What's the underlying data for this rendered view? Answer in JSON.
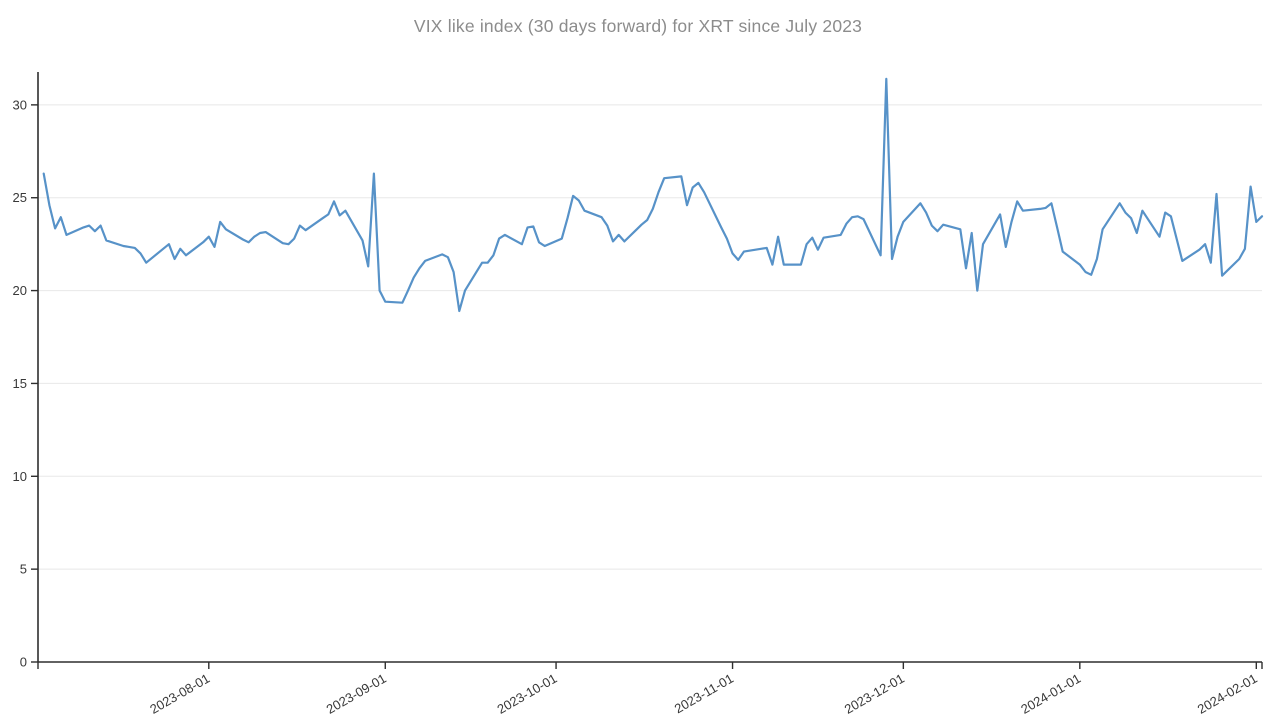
{
  "chart_data": {
    "type": "line",
    "title": "VIX like index (30 days forward) for XRT since July 2023",
    "xlabel": "",
    "ylabel": "",
    "grid": true,
    "legend": false,
    "x_range": [
      "2023-07-02",
      "2024-02-02"
    ],
    "ylim": [
      0,
      31.77
    ],
    "y_ticks": [
      0,
      5,
      10,
      15,
      20,
      25,
      30
    ],
    "x_ticks": [
      "2023-08-01",
      "2023-09-01",
      "2023-10-01",
      "2023-11-01",
      "2023-12-01",
      "2024-01-01",
      "2024-02-01"
    ],
    "colors": {
      "line": "#5792c8",
      "grid": "#e8e8e8",
      "axis": "#2e2e2e",
      "tick_label": "#383838",
      "title": "#8c8c8c"
    },
    "points": [
      [
        "2023-07-03",
        26.3
      ],
      [
        "2023-07-04",
        24.6
      ],
      [
        "2023-07-05",
        23.35
      ],
      [
        "2023-07-06",
        23.95
      ],
      [
        "2023-07-07",
        23.0
      ],
      [
        "2023-07-10",
        23.4
      ],
      [
        "2023-07-11",
        23.5
      ],
      [
        "2023-07-12",
        23.2
      ],
      [
        "2023-07-13",
        23.5
      ],
      [
        "2023-07-14",
        22.7
      ],
      [
        "2023-07-17",
        22.4
      ],
      [
        "2023-07-18",
        22.35
      ],
      [
        "2023-07-19",
        22.3
      ],
      [
        "2023-07-20",
        22.0
      ],
      [
        "2023-07-21",
        21.5
      ],
      [
        "2023-07-24",
        22.25
      ],
      [
        "2023-07-25",
        22.5
      ],
      [
        "2023-07-26",
        21.7
      ],
      [
        "2023-07-27",
        22.25
      ],
      [
        "2023-07-28",
        21.9
      ],
      [
        "2023-07-31",
        22.6
      ],
      [
        "2023-08-01",
        22.9
      ],
      [
        "2023-08-02",
        22.35
      ],
      [
        "2023-08-03",
        23.7
      ],
      [
        "2023-08-04",
        23.3
      ],
      [
        "2023-08-07",
        22.75
      ],
      [
        "2023-08-08",
        22.6
      ],
      [
        "2023-08-09",
        22.9
      ],
      [
        "2023-08-10",
        23.1
      ],
      [
        "2023-08-11",
        23.15
      ],
      [
        "2023-08-14",
        22.55
      ],
      [
        "2023-08-15",
        22.5
      ],
      [
        "2023-08-16",
        22.8
      ],
      [
        "2023-08-17",
        23.5
      ],
      [
        "2023-08-18",
        23.25
      ],
      [
        "2023-08-21",
        23.9
      ],
      [
        "2023-08-22",
        24.1
      ],
      [
        "2023-08-23",
        24.8
      ],
      [
        "2023-08-24",
        24.05
      ],
      [
        "2023-08-25",
        24.3
      ],
      [
        "2023-08-28",
        22.7
      ],
      [
        "2023-08-29",
        21.3
      ],
      [
        "2023-08-30",
        26.3
      ],
      [
        "2023-08-31",
        20.0
      ],
      [
        "2023-09-01",
        19.4
      ],
      [
        "2023-09-04",
        19.35
      ],
      [
        "2023-09-05",
        20.0
      ],
      [
        "2023-09-06",
        20.7
      ],
      [
        "2023-09-07",
        21.2
      ],
      [
        "2023-09-08",
        21.6
      ],
      [
        "2023-09-11",
        21.95
      ],
      [
        "2023-09-12",
        21.8
      ],
      [
        "2023-09-13",
        21.0
      ],
      [
        "2023-09-14",
        18.9
      ],
      [
        "2023-09-15",
        20.0
      ],
      [
        "2023-09-18",
        21.5
      ],
      [
        "2023-09-19",
        21.5
      ],
      [
        "2023-09-20",
        21.9
      ],
      [
        "2023-09-21",
        22.8
      ],
      [
        "2023-09-22",
        23.0
      ],
      [
        "2023-09-25",
        22.5
      ],
      [
        "2023-09-26",
        23.4
      ],
      [
        "2023-09-27",
        23.45
      ],
      [
        "2023-09-28",
        22.6
      ],
      [
        "2023-09-29",
        22.4
      ],
      [
        "2023-10-02",
        22.8
      ],
      [
        "2023-10-03",
        23.9
      ],
      [
        "2023-10-04",
        25.1
      ],
      [
        "2023-10-05",
        24.85
      ],
      [
        "2023-10-06",
        24.3
      ],
      [
        "2023-10-09",
        23.95
      ],
      [
        "2023-10-10",
        23.5
      ],
      [
        "2023-10-11",
        22.65
      ],
      [
        "2023-10-12",
        23.0
      ],
      [
        "2023-10-13",
        22.65
      ],
      [
        "2023-10-16",
        23.55
      ],
      [
        "2023-10-17",
        23.8
      ],
      [
        "2023-10-18",
        24.4
      ],
      [
        "2023-10-19",
        25.3
      ],
      [
        "2023-10-20",
        26.05
      ],
      [
        "2023-10-23",
        26.15
      ],
      [
        "2023-10-24",
        24.6
      ],
      [
        "2023-10-25",
        25.55
      ],
      [
        "2023-10-26",
        25.8
      ],
      [
        "2023-10-27",
        25.3
      ],
      [
        "2023-10-30",
        23.4
      ],
      [
        "2023-10-31",
        22.8
      ],
      [
        "2023-11-01",
        22.0
      ],
      [
        "2023-11-02",
        21.65
      ],
      [
        "2023-11-03",
        22.1
      ],
      [
        "2023-11-06",
        22.25
      ],
      [
        "2023-11-07",
        22.3
      ],
      [
        "2023-11-08",
        21.4
      ],
      [
        "2023-11-09",
        22.9
      ],
      [
        "2023-11-10",
        21.4
      ],
      [
        "2023-11-13",
        21.4
      ],
      [
        "2023-11-14",
        22.5
      ],
      [
        "2023-11-15",
        22.85
      ],
      [
        "2023-11-16",
        22.2
      ],
      [
        "2023-11-17",
        22.85
      ],
      [
        "2023-11-20",
        23.0
      ],
      [
        "2023-11-21",
        23.6
      ],
      [
        "2023-11-22",
        23.95
      ],
      [
        "2023-11-23",
        24.0
      ],
      [
        "2023-11-24",
        23.85
      ],
      [
        "2023-11-27",
        21.9
      ],
      [
        "2023-11-28",
        31.4
      ],
      [
        "2023-11-29",
        21.7
      ],
      [
        "2023-11-30",
        22.9
      ],
      [
        "2023-12-01",
        23.7
      ],
      [
        "2023-12-04",
        24.7
      ],
      [
        "2023-12-05",
        24.2
      ],
      [
        "2023-12-06",
        23.5
      ],
      [
        "2023-12-07",
        23.2
      ],
      [
        "2023-12-08",
        23.55
      ],
      [
        "2023-12-11",
        23.3
      ],
      [
        "2023-12-12",
        21.2
      ],
      [
        "2023-12-13",
        23.1
      ],
      [
        "2023-12-14",
        20.0
      ],
      [
        "2023-12-15",
        22.5
      ],
      [
        "2023-12-18",
        24.1
      ],
      [
        "2023-12-19",
        22.35
      ],
      [
        "2023-12-20",
        23.7
      ],
      [
        "2023-12-21",
        24.8
      ],
      [
        "2023-12-22",
        24.3
      ],
      [
        "2023-12-25",
        24.4
      ],
      [
        "2023-12-26",
        24.45
      ],
      [
        "2023-12-27",
        24.7
      ],
      [
        "2023-12-28",
        23.4
      ],
      [
        "2023-12-29",
        22.1
      ],
      [
        "2024-01-01",
        21.4
      ],
      [
        "2024-01-02",
        21.0
      ],
      [
        "2024-01-03",
        20.85
      ],
      [
        "2024-01-04",
        21.7
      ],
      [
        "2024-01-05",
        23.3
      ],
      [
        "2024-01-08",
        24.7
      ],
      [
        "2024-01-09",
        24.2
      ],
      [
        "2024-01-10",
        23.9
      ],
      [
        "2024-01-11",
        23.1
      ],
      [
        "2024-01-12",
        24.3
      ],
      [
        "2024-01-15",
        22.9
      ],
      [
        "2024-01-16",
        24.2
      ],
      [
        "2024-01-17",
        24.0
      ],
      [
        "2024-01-18",
        22.8
      ],
      [
        "2024-01-19",
        21.6
      ],
      [
        "2024-01-22",
        22.2
      ],
      [
        "2024-01-23",
        22.5
      ],
      [
        "2024-01-24",
        21.5
      ],
      [
        "2024-01-25",
        25.2
      ],
      [
        "2024-01-26",
        20.8
      ],
      [
        "2024-01-29",
        21.7
      ],
      [
        "2024-01-30",
        22.25
      ],
      [
        "2024-01-31",
        25.6
      ],
      [
        "2024-02-01",
        23.7
      ],
      [
        "2024-02-02",
        24.0
      ]
    ]
  }
}
